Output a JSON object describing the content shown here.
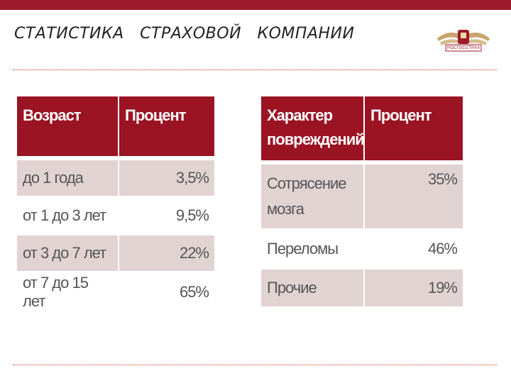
{
  "title": "СТАТИСТИКА   СТРАХОВОЙ   КОМПАНИИ",
  "logo": {
    "text": "РОСГОССТРАХ",
    "icon": "eagle-emblem-icon",
    "color": "#9b1b2a"
  },
  "accent_color": "#9b1424",
  "table_age": {
    "headers": [
      "Возраст",
      "Процент"
    ],
    "rows": [
      {
        "label": "до 1 года",
        "value": "3,5%"
      },
      {
        "label": "от 1 до 3 лет",
        "value": "9,5%"
      },
      {
        "label": "от 3 до 7 лет",
        "value": "22%"
      },
      {
        "label": "от  7 до 15 лет",
        "value": "65%"
      }
    ]
  },
  "table_injury": {
    "headers": [
      "Характер повреждений",
      "Процент"
    ],
    "rows": [
      {
        "label": "Сотрясение мозга",
        "value": "35%"
      },
      {
        "label": "Переломы",
        "value": "46%"
      },
      {
        "label": "Прочие",
        "value": "19%"
      }
    ]
  }
}
